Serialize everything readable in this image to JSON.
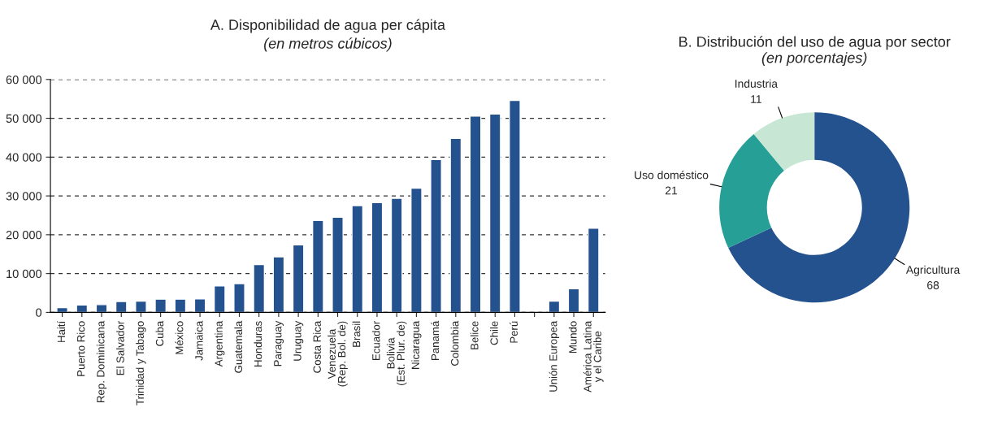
{
  "chart_data": [
    {
      "type": "bar",
      "title": "A. Disponibilidad de agua per cápita",
      "subtitle": "(en metros cúbicos)",
      "categories": [
        "Haití",
        "Puerto Rico",
        "Rep. Dominicana",
        "El Salvador",
        "Trinidad y Tabago",
        "Cuba",
        "México",
        "Jamaica",
        "Argentina",
        "Guatemala",
        "Honduras",
        "Paraguay",
        "Uruguay",
        "Costa Rica",
        "Venezuela\n(Rep. Bol. de)",
        "Brasil",
        "Ecuador",
        "Bolivia\n(Est. Plur. de)",
        "Nicaragua",
        "Panamá",
        "Colombia",
        "Belice",
        "Chile",
        "Perú",
        null,
        "Unión Europea",
        "Mundo",
        "América Latina\ny el Caribe"
      ],
      "values": [
        1200,
        1900,
        2000,
        2800,
        2900,
        3400,
        3400,
        3500,
        6800,
        7400,
        12300,
        14300,
        17400,
        23700,
        24500,
        27500,
        28300,
        29400,
        32000,
        39400,
        44800,
        50600,
        51100,
        54600,
        null,
        2900,
        6100,
        21700
      ],
      "color": "#24528f",
      "ylim": [
        0,
        60000
      ],
      "yticks": [
        {
          "value": 0,
          "label": "0"
        },
        {
          "value": 10000,
          "label": "10 000"
        },
        {
          "value": 20000,
          "label": "20 000"
        },
        {
          "value": 30000,
          "label": "30 000"
        },
        {
          "value": 40000,
          "label": "40 000"
        },
        {
          "value": 50000,
          "label": "50 000"
        },
        {
          "value": 60000,
          "label": "60 000"
        }
      ],
      "grid": "y",
      "legend": false
    },
    {
      "type": "donut",
      "title": "B. Distribución del uso de agua por sector",
      "subtitle": "(en porcentajes)",
      "categories": [
        "Agricultura",
        "Uso doméstico",
        "Industria"
      ],
      "values": [
        68,
        21,
        11
      ],
      "colors": [
        "#24528f",
        "#26a096",
        "#c8e6d4"
      ],
      "data_labels": true,
      "legend": false
    }
  ]
}
